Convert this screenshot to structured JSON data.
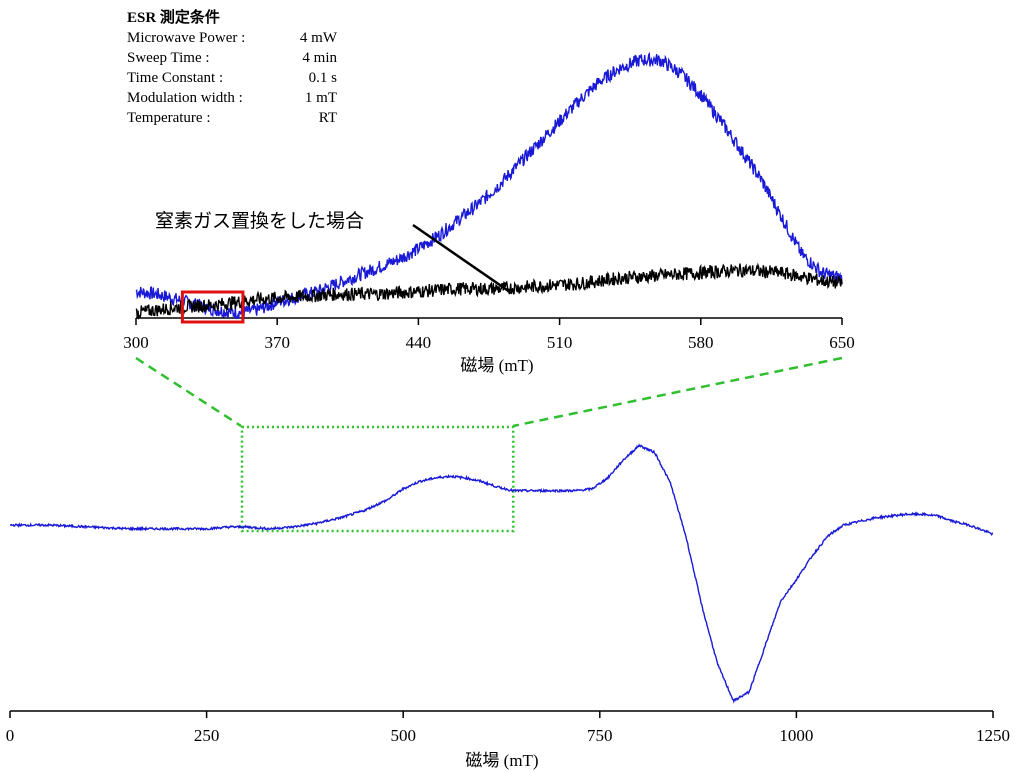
{
  "conditions": {
    "title": "ESR 測定条件",
    "rows": [
      {
        "label": "Microwave Power :",
        "value": "4 mW"
      },
      {
        "label": "Sweep Time :",
        "value": "4 min"
      },
      {
        "label": "Time Constant :",
        "value": "0.1 s"
      },
      {
        "label": "Modulation width :",
        "value": "1 mT"
      },
      {
        "label": "Temperature :",
        "value": "RT"
      }
    ]
  },
  "annotation": "窒素ガス置換をした場合",
  "chart_data": [
    {
      "type": "line",
      "role": "inset",
      "xlabel": "磁場 (mT)",
      "ylabel": "",
      "xlim": [
        300,
        650
      ],
      "xticks": [
        300,
        370,
        440,
        510,
        580,
        650
      ],
      "ylim": [
        0,
        1
      ],
      "grid": false,
      "highlight_box_x": [
        323,
        353
      ],
      "series": [
        {
          "color": "#1a1ad6",
          "x": [
            300,
            310,
            320,
            330,
            340,
            350,
            360,
            370,
            380,
            390,
            400,
            410,
            420,
            430,
            440,
            450,
            460,
            470,
            480,
            490,
            500,
            510,
            520,
            530,
            540,
            550,
            560,
            570,
            580,
            590,
            600,
            610,
            620,
            630,
            640,
            650
          ],
          "y": [
            0.1,
            0.09,
            0.07,
            0.05,
            0.03,
            0.02,
            0.03,
            0.06,
            0.08,
            0.1,
            0.13,
            0.16,
            0.19,
            0.22,
            0.26,
            0.31,
            0.37,
            0.43,
            0.5,
            0.58,
            0.66,
            0.74,
            0.82,
            0.89,
            0.94,
            0.97,
            0.97,
            0.92,
            0.84,
            0.74,
            0.63,
            0.52,
            0.38,
            0.24,
            0.17,
            0.15
          ]
        },
        {
          "color": "#000000",
          "x": [
            300,
            320,
            340,
            360,
            380,
            400,
            420,
            440,
            460,
            480,
            500,
            520,
            540,
            560,
            580,
            600,
            620,
            640,
            650
          ],
          "y": [
            0.02,
            0.04,
            0.05,
            0.07,
            0.08,
            0.09,
            0.09,
            0.1,
            0.11,
            0.11,
            0.12,
            0.13,
            0.15,
            0.16,
            0.17,
            0.18,
            0.17,
            0.14,
            0.13
          ]
        }
      ]
    },
    {
      "type": "line",
      "role": "main",
      "xlabel": "磁場 (mT)",
      "ylabel": "",
      "xlim": [
        0,
        1250
      ],
      "xticks": [
        0,
        250,
        500,
        750,
        1000,
        1250
      ],
      "ylim": [
        -1,
        0.6
      ],
      "grid": false,
      "zoom_box_x": [
        295,
        640
      ],
      "series": [
        {
          "color": "#1a1ad6",
          "x": [
            0,
            50,
            100,
            150,
            200,
            250,
            280,
            300,
            330,
            360,
            390,
            420,
            450,
            480,
            500,
            520,
            540,
            560,
            580,
            600,
            620,
            640,
            660,
            680,
            700,
            720,
            740,
            760,
            780,
            800,
            820,
            840,
            860,
            880,
            900,
            920,
            940,
            960,
            980,
            1000,
            1020,
            1040,
            1060,
            1080,
            1100,
            1120,
            1140,
            1160,
            1180,
            1200,
            1220,
            1250
          ],
          "y": [
            0.02,
            0.02,
            0.01,
            0.0,
            0.0,
            0.0,
            0.01,
            0.01,
            0.0,
            0.01,
            0.03,
            0.06,
            0.1,
            0.16,
            0.22,
            0.26,
            0.28,
            0.29,
            0.28,
            0.26,
            0.23,
            0.21,
            0.21,
            0.21,
            0.21,
            0.21,
            0.22,
            0.28,
            0.38,
            0.46,
            0.42,
            0.25,
            -0.05,
            -0.43,
            -0.75,
            -0.95,
            -0.9,
            -0.65,
            -0.4,
            -0.28,
            -0.15,
            -0.04,
            0.02,
            0.04,
            0.06,
            0.07,
            0.08,
            0.08,
            0.07,
            0.04,
            0.02,
            -0.03
          ]
        }
      ]
    }
  ]
}
